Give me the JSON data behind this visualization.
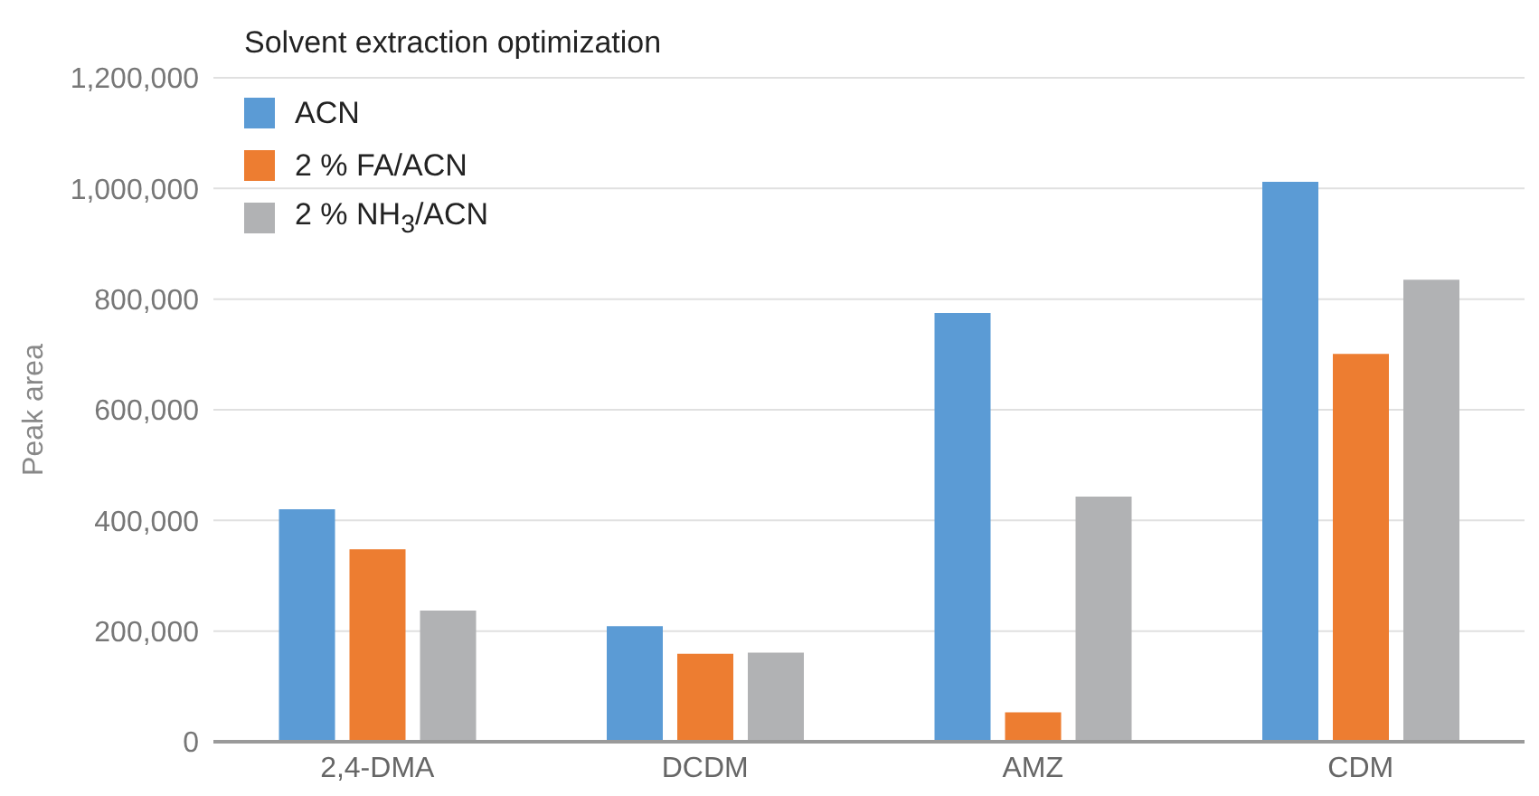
{
  "chart_data": {
    "type": "bar",
    "title": "Solvent extraction optimization",
    "ylabel": "Peak area",
    "categories": [
      "2,4-DMA",
      "DCDM",
      "AMZ",
      "CDM"
    ],
    "series": [
      {
        "name": "ACN",
        "color": "#5b9bd5",
        "values": [
          420000,
          209000,
          775000,
          1012000
        ]
      },
      {
        "name": "2 % FA/ACN",
        "color": "#ed7d31",
        "values": [
          348000,
          159000,
          53000,
          701000
        ]
      },
      {
        "name": "2 % NH$_{3}$/ACN",
        "color": "#b1b2b4",
        "values": [
          237000,
          161000,
          443000,
          835000
        ]
      }
    ],
    "ylim": [
      0,
      1200000
    ],
    "yticks": [
      0,
      {
        "value": 200000,
        "label": "200,000"
      },
      {
        "value": 400000,
        "label": "400,000"
      },
      {
        "value": 600000,
        "label": "600,000"
      },
      {
        "value": 800000,
        "label": "800,000"
      },
      {
        "value": 1000000,
        "label": "1,000,000"
      },
      {
        "value": 1200000,
        "label": "1,200,000"
      }
    ],
    "grid": "y",
    "legend": "top left"
  }
}
